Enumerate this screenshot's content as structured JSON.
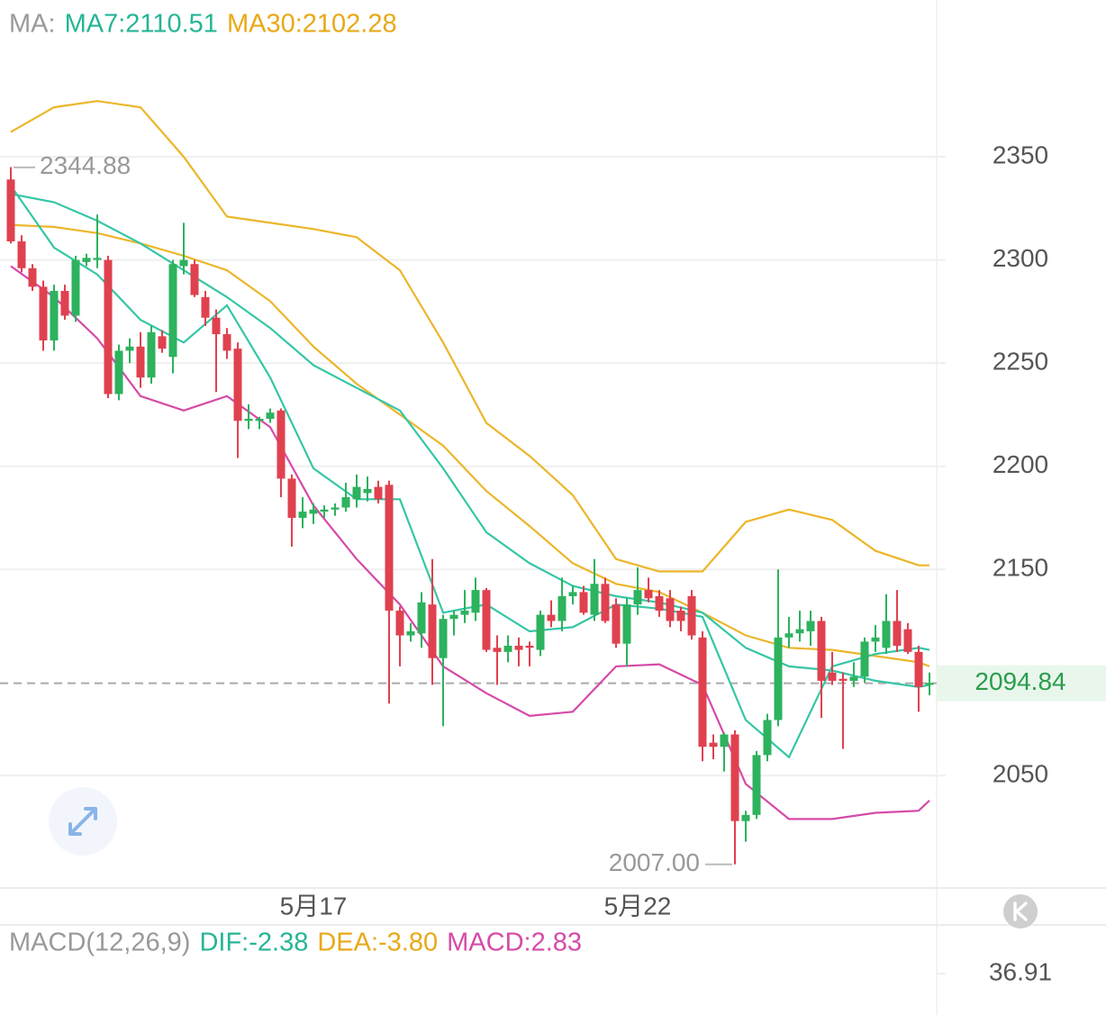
{
  "chart_data": {
    "type": "candlestick",
    "categories": [
      null,
      null,
      null,
      null,
      null,
      null,
      null,
      null,
      null,
      null,
      null,
      null,
      null,
      null,
      null,
      null,
      null,
      null,
      null,
      null,
      null,
      null,
      null,
      null,
      null,
      null,
      null,
      null,
      "5月17",
      null,
      null,
      null,
      null,
      null,
      null,
      null,
      null,
      null,
      null,
      null,
      null,
      null,
      null,
      null,
      null,
      null,
      null,
      null,
      null,
      null,
      null,
      null,
      null,
      null,
      null,
      null,
      null,
      null,
      "5月22",
      null,
      null,
      null,
      null,
      null,
      null,
      null,
      null,
      null,
      null,
      null,
      null,
      null,
      null,
      null,
      null,
      null,
      null,
      null,
      null,
      null,
      null,
      null,
      null,
      null,
      null,
      null
    ],
    "open": [
      2339,
      2309,
      2296,
      2287,
      2261,
      2285,
      2273,
      2299,
      2300,
      2300,
      2235,
      2256,
      2258,
      2243,
      2263,
      2253,
      2297,
      2298,
      2282,
      2272,
      2264,
      2257,
      2222,
      2222,
      2223,
      2227,
      2194,
      2175,
      2177,
      2178,
      2179,
      2180,
      2184,
      2187,
      2190,
      2191,
      2130,
      2118,
      2119,
      2133,
      2107,
      2126,
      2128,
      2129,
      2140,
      2112,
      2110,
      2113,
      2113,
      2111,
      2128,
      2125,
      2137,
      2139,
      2128,
      2143,
      2133,
      2114,
      2133,
      2140,
      2137,
      2136,
      2130,
      2137,
      2117,
      2066,
      2064,
      2070,
      2028,
      2031,
      2060,
      2077,
      2117,
      2119,
      2120,
      2125,
      2100,
      2097,
      2096,
      2098,
      2115,
      2112,
      2125,
      2121,
      2110,
      2094
    ],
    "high": [
      2345,
      2312,
      2298,
      2290,
      2288,
      2288,
      2302,
      2303,
      2322,
      2302,
      2259,
      2262,
      2265,
      2268,
      2266,
      2300,
      2318,
      2300,
      2285,
      2276,
      2267,
      2260,
      2230,
      2224,
      2228,
      2228,
      2196,
      2185,
      2182,
      2181,
      2182,
      2192,
      2196,
      2195,
      2193,
      2193,
      2132,
      2124,
      2139,
      2155,
      2128,
      2130,
      2140,
      2146,
      2141,
      2118,
      2118,
      2117,
      2115,
      2130,
      2135,
      2146,
      2142,
      2142,
      2155,
      2146,
      2136,
      2136,
      2151,
      2146,
      2140,
      2140,
      2132,
      2140,
      2120,
      2070,
      2071,
      2072,
      2033,
      2062,
      2080,
      2150,
      2127,
      2130,
      2130,
      2127,
      2110,
      2100,
      2105,
      2117,
      2123,
      2138,
      2140,
      2124,
      2113,
      2100
    ],
    "low": [
      2308,
      2294,
      2285,
      2256,
      2256,
      2271,
      2270,
      2297,
      2296,
      2233,
      2232,
      2250,
      2238,
      2240,
      2255,
      2245,
      2293,
      2282,
      2268,
      2236,
      2252,
      2204,
      2218,
      2218,
      2221,
      2185,
      2161,
      2170,
      2172,
      2175,
      2176,
      2178,
      2180,
      2183,
      2182,
      2085,
      2103,
      2115,
      2112,
      2094,
      2074,
      2118,
      2124,
      2125,
      2110,
      2094,
      2105,
      2103,
      2103,
      2108,
      2122,
      2120,
      2133,
      2128,
      2125,
      2124,
      2112,
      2103,
      2128,
      2134,
      2127,
      2122,
      2120,
      2116,
      2057,
      2058,
      2052,
      2007,
      2018,
      2029,
      2057,
      2074,
      2112,
      2115,
      2113,
      2078,
      2094,
      2063,
      2093,
      2095,
      2110,
      2109,
      2110,
      2109,
      2081,
      2089
    ],
    "close": [
      2309,
      2296,
      2287,
      2261,
      2285,
      2273,
      2300,
      2301,
      2301,
      2235,
      2256,
      2258,
      2243,
      2265,
      2257,
      2298,
      2300,
      2283,
      2272,
      2264,
      2256,
      2222,
      2223,
      2223,
      2226,
      2194,
      2175,
      2178,
      2179,
      2179,
      2180,
      2185,
      2190,
      2189,
      2184,
      2130,
      2118,
      2120,
      2134,
      2107,
      2126,
      2128,
      2130,
      2140,
      2111,
      2110,
      2113,
      2111,
      2112,
      2128,
      2125,
      2137,
      2139,
      2129,
      2143,
      2125,
      2114,
      2133,
      2140,
      2136,
      2130,
      2125,
      2125,
      2118,
      2064,
      2064,
      2070,
      2028,
      2031,
      2060,
      2077,
      2117,
      2119,
      2121,
      2125,
      2096,
      2096,
      2096,
      2098,
      2115,
      2117,
      2125,
      2113,
      2110,
      2093,
      2095
    ],
    "up_color": "#2db25e",
    "down_color": "#e0414f",
    "lines": [
      {
        "color": "#ecb62a",
        "x": [
          0,
          4,
          8,
          12,
          16,
          20,
          24,
          28,
          32,
          36,
          40,
          44,
          48,
          52,
          56,
          60,
          64,
          68,
          72,
          76,
          80,
          84,
          85
        ],
        "values": [
          2362,
          2374,
          2377,
          2374,
          2350,
          2321,
          2318,
          2315,
          2311,
          2295,
          2260,
          2221,
          2205,
          2186,
          2155,
          2149,
          2149,
          2173,
          2179,
          2174,
          2159,
          2152,
          2152
        ]
      },
      {
        "color": "#ecb62a",
        "x": [
          0,
          4,
          8,
          12,
          16,
          20,
          24,
          28,
          32,
          36,
          40,
          44,
          48,
          52,
          56,
          60,
          64,
          68,
          72,
          76,
          80,
          84,
          85
        ],
        "values": [
          2317,
          2316,
          2313,
          2308,
          2302,
          2295,
          2280,
          2258,
          2240,
          2225,
          2210,
          2188,
          2171,
          2153,
          2143,
          2139,
          2129,
          2118,
          2112,
          2111,
          2108,
          2105,
          2103
        ]
      },
      {
        "color": "#35c6a5",
        "x": [
          0,
          4,
          8,
          12,
          16,
          20,
          24,
          28,
          32,
          36,
          40,
          44,
          48,
          52,
          56,
          60,
          64,
          68,
          72,
          76,
          80,
          84,
          85
        ],
        "values": [
          2336,
          2306,
          2293,
          2271,
          2260,
          2278,
          2243,
          2199,
          2184,
          2184,
          2129,
          2133,
          2120,
          2122,
          2133,
          2131,
          2127,
          2077,
          2059,
          2103,
          2109,
          2112,
          2111
        ]
      },
      {
        "color": "#35c6a5",
        "x": [
          0,
          4,
          8,
          12,
          16,
          20,
          24,
          28,
          32,
          36,
          40,
          44,
          48,
          52,
          56,
          60,
          64,
          68,
          72,
          76,
          80,
          84,
          85
        ],
        "values": [
          2332,
          2328,
          2319,
          2308,
          2295,
          2282,
          2267,
          2249,
          2238,
          2227,
          2199,
          2168,
          2153,
          2142,
          2137,
          2134,
          2129,
          2112,
          2103,
          2101,
          2096,
          2093,
          2094
        ]
      },
      {
        "color": "#d64aa8",
        "x": [
          0,
          4,
          8,
          12,
          16,
          20,
          24,
          28,
          32,
          36,
          40,
          44,
          48,
          52,
          56,
          60,
          64,
          68,
          72,
          76,
          80,
          84,
          85
        ],
        "values": [
          2297,
          2282,
          2262,
          2234,
          2227,
          2234,
          2219,
          2181,
          2155,
          2133,
          2103,
          2090,
          2079,
          2081,
          2103,
          2104,
          2094,
          2046,
          2029,
          2029,
          2032,
          2033,
          2038
        ]
      }
    ],
    "ylim": [
      1996,
      2426
    ],
    "yticks": [
      2050,
      2150,
      2200,
      2250,
      2300,
      2350
    ],
    "grid": true,
    "last_price": 2094.84,
    "last_price_color": "#2a9d4b",
    "annotations": [
      2344.88,
      {
        "value": 2007,
        "label": "2007.00"
      }
    ],
    "legend": {
      "prefix": "MA:",
      "items": [
        {
          "text": "MA7:2110.51",
          "color": "#26b596"
        },
        {
          "text": "MA30:2102.28",
          "color": "#e8a917"
        }
      ]
    }
  },
  "macd_panel": {
    "legend": {
      "prefix": "MACD(12,26,9)",
      "items": [
        {
          "text": "DIF:-2.38",
          "color": "#26b596"
        },
        {
          "text": "DEA:-3.80",
          "color": "#e8a917"
        },
        {
          "text": "MACD:2.83",
          "color": "#d64aa8"
        }
      ]
    },
    "ytick": 36.91
  }
}
